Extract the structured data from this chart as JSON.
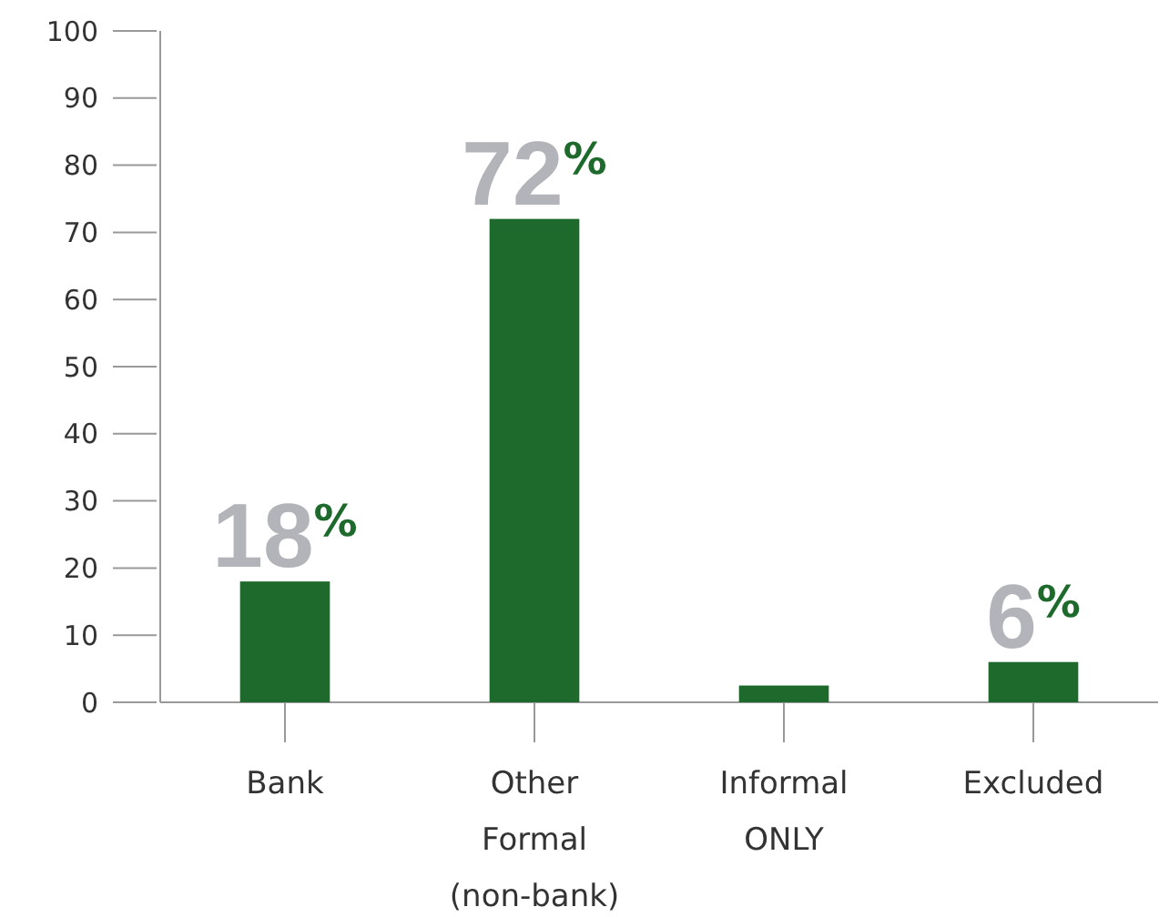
{
  "chart_data": {
    "type": "bar",
    "categories": [
      "Bank",
      "Other\nFormal\n(non-bank)",
      "Informal\nONLY",
      "Excluded"
    ],
    "values": [
      18,
      72,
      2.5,
      6
    ],
    "color": "#1d6a2c",
    "value_labels": [
      "18$^{%}$",
      "72$^{%}$",
      null,
      "6$^{%}$"
    ],
    "ylim": [
      0,
      100
    ],
    "yticks": [
      0,
      10,
      20,
      30,
      40,
      50,
      60,
      70,
      80,
      90,
      100
    ],
    "grid": false
  }
}
